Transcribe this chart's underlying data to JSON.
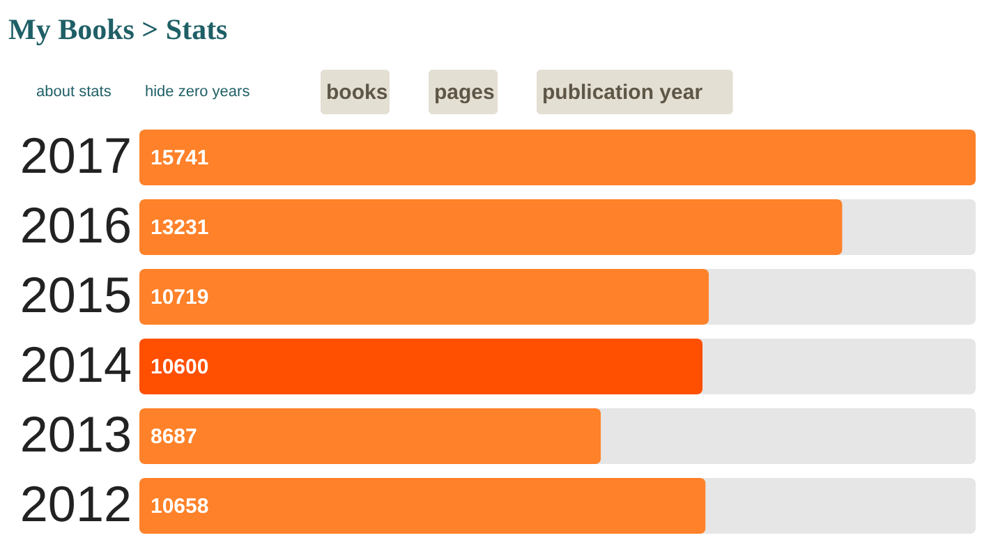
{
  "chart_data": {
    "type": "bar",
    "orientation": "horizontal",
    "title": "My Books > Stats",
    "annotations": [
      "about stats",
      "hide zero years",
      "books",
      "pages",
      "publication year"
    ],
    "categories": [
      "2017",
      "2016",
      "2015",
      "2014",
      "2013",
      "2012"
    ],
    "values": [
      15741,
      13231,
      10719,
      10600,
      8687,
      10658
    ],
    "colors": [
      "#ff8129",
      "#ff8129",
      "#ff8129",
      "#ff4f00",
      "#ff8129",
      "#ff8129"
    ],
    "xlim": [
      0,
      15741
    ],
    "data_labels": true,
    "grid": false,
    "legend": false,
    "tick_labels": "y"
  }
}
